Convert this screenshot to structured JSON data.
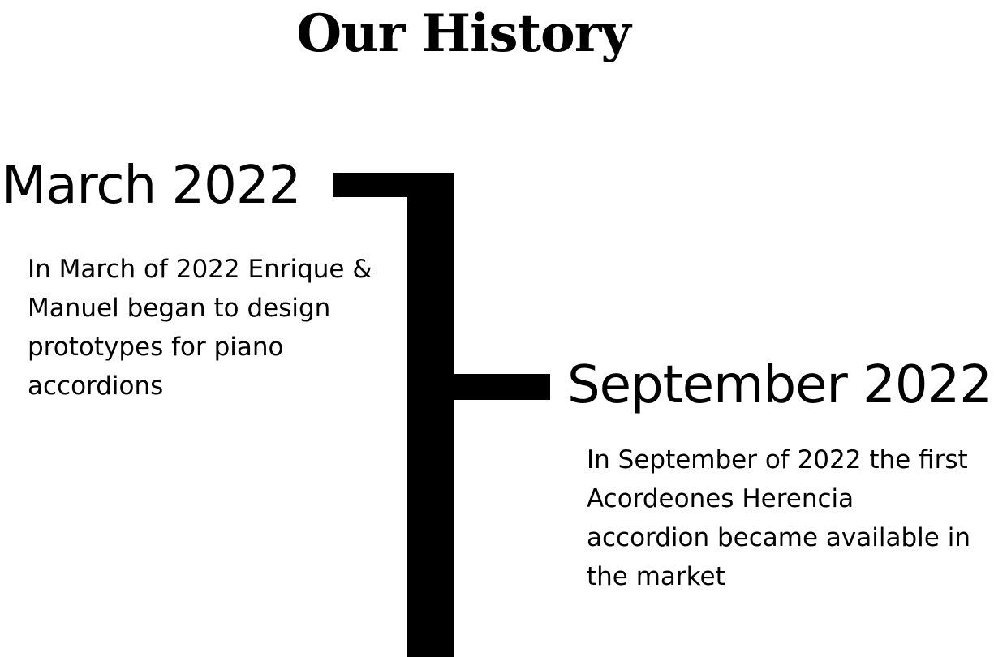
{
  "page": {
    "title": "Our History"
  },
  "timeline": {
    "events": [
      {
        "date": "March 2022",
        "description": "In March of 2022 Enrique & Manuel began to design prototypes for piano accordions"
      },
      {
        "date": "September 2022",
        "description": "In September of 2022 the first Acordeones Herencia accordion became available in the market"
      }
    ],
    "line_color": "#000000"
  }
}
